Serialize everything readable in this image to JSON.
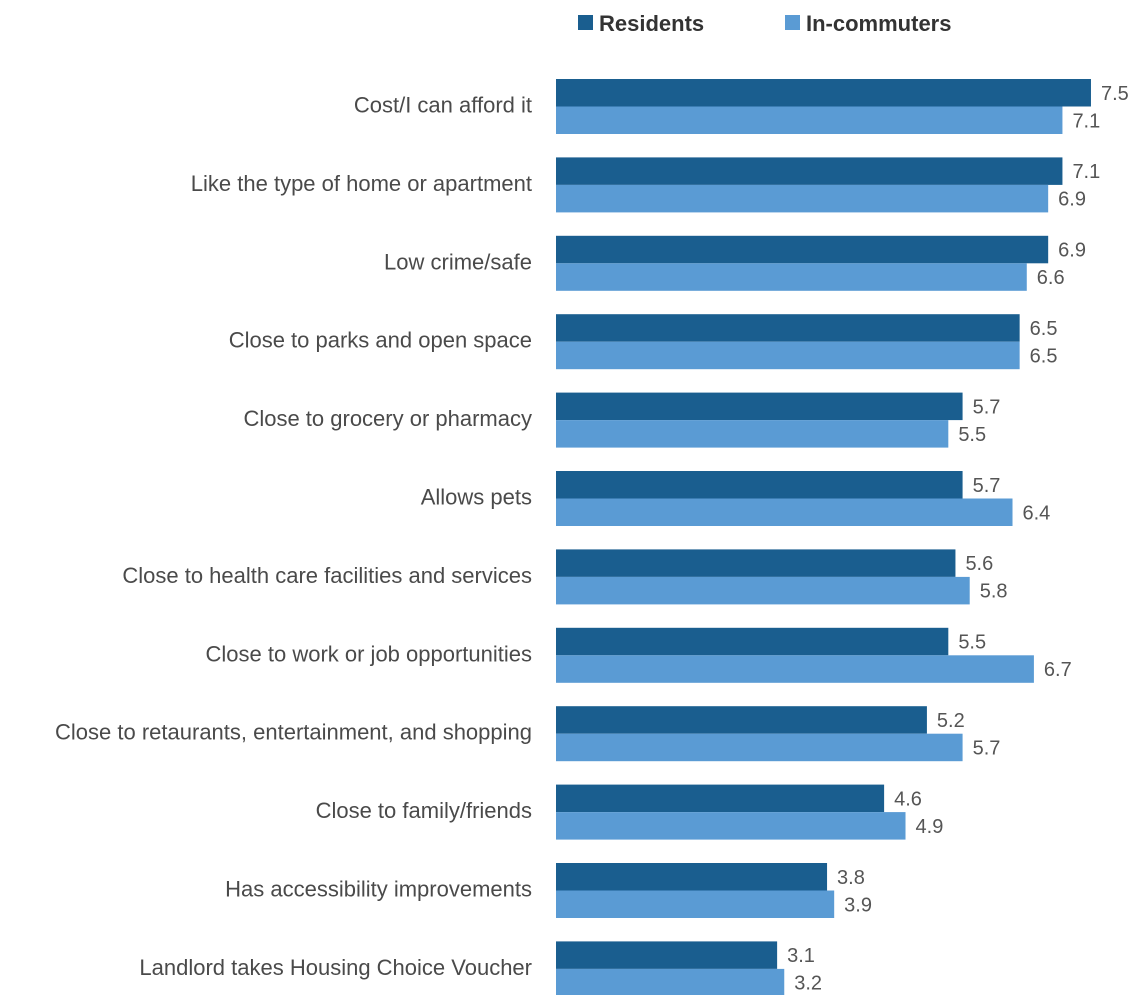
{
  "chart_data": {
    "type": "bar",
    "orientation": "horizontal",
    "title": "",
    "xlabel": "",
    "ylabel": "",
    "xlim": [
      0,
      7.5
    ],
    "grid": false,
    "legend_position": "top",
    "categories": [
      "Cost/I can afford it",
      "Like the type of home or apartment",
      "Low crime/safe",
      "Close to parks and open space",
      "Close to grocery or pharmacy",
      "Allows pets",
      "Close to health care facilities and services",
      "Close to work or job opportunities",
      "Close to retaurants, entertainment, and shopping",
      "Close to family/friends",
      "Has accessibility improvements",
      "Landlord takes Housing Choice Voucher"
    ],
    "series": [
      {
        "name": "Residents",
        "color": "#1a5e8f",
        "values": [
          7.5,
          7.1,
          6.9,
          6.5,
          5.7,
          5.7,
          5.6,
          5.5,
          5.2,
          4.6,
          3.8,
          3.1
        ]
      },
      {
        "name": "In-commuters",
        "color": "#5a9bd4",
        "values": [
          7.1,
          6.9,
          6.6,
          6.5,
          5.5,
          6.4,
          5.8,
          6.7,
          5.7,
          4.9,
          3.9,
          3.2
        ]
      }
    ]
  }
}
